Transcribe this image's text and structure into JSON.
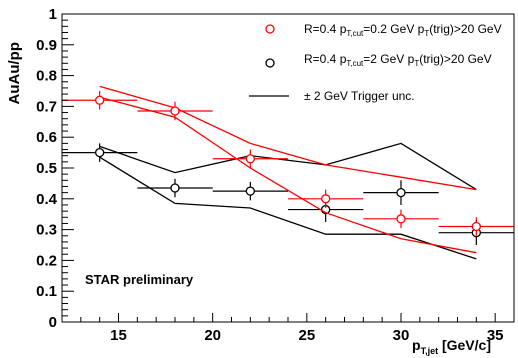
{
  "chart_data": {
    "type": "scatter",
    "xlabel": {
      "main": "p",
      "sub": "T,jet",
      "rest": " [GeV/c]"
    },
    "ylabel": "AuAu/pp",
    "xlim": [
      12,
      36
    ],
    "ylim": [
      0,
      1
    ],
    "x_ticks": [
      15,
      20,
      25,
      30,
      35
    ],
    "y_ticks": [
      0,
      0.1,
      0.2,
      0.3,
      0.4,
      0.5,
      0.6,
      0.7,
      0.8,
      0.9,
      1
    ],
    "grid": false,
    "legend_position": "top-right",
    "annotation": "STAR preliminary",
    "legend": {
      "series0": {
        "a": "R=0.4 p",
        "b": "T,cut",
        "c": "=0.2 GeV p",
        "d": "T",
        "e": "(trig)>20 GeV"
      },
      "series1": {
        "a": "R=0.4 p",
        "b": "T,cut",
        "c": "=2 GeV p",
        "d": "T",
        "e": "(trig)>20 GeV"
      },
      "band": "± 2 GeV Trigger unc."
    },
    "series": [
      {
        "color": "#ff0000",
        "marker": "open-circle",
        "points": [
          {
            "x": 14,
            "y": 0.72,
            "xerr": 2,
            "yerr": 0.03
          },
          {
            "x": 18,
            "y": 0.685,
            "xerr": 2,
            "yerr": 0.03
          },
          {
            "x": 22,
            "y": 0.53,
            "xerr": 2,
            "yerr": 0.03
          },
          {
            "x": 26,
            "y": 0.4,
            "xerr": 2,
            "yerr": 0.03
          },
          {
            "x": 30,
            "y": 0.335,
            "xerr": 2,
            "yerr": 0.03
          },
          {
            "x": 34,
            "y": 0.31,
            "xerr": 2,
            "yerr": 0.03
          }
        ],
        "band_upper": [
          [
            14,
            0.765
          ],
          [
            18,
            0.695
          ],
          [
            22,
            0.58
          ],
          [
            26,
            0.51
          ],
          [
            30,
            0.47
          ],
          [
            34,
            0.43
          ]
        ],
        "band_lower": [
          [
            14,
            0.73
          ],
          [
            18,
            0.665
          ],
          [
            22,
            0.5
          ],
          [
            26,
            0.355
          ],
          [
            30,
            0.27
          ],
          [
            34,
            0.225
          ]
        ]
      },
      {
        "color": "#000000",
        "marker": "open-circle",
        "points": [
          {
            "x": 14,
            "y": 0.55,
            "xerr": 2,
            "yerr": 0.03
          },
          {
            "x": 18,
            "y": 0.435,
            "xerr": 2,
            "yerr": 0.03
          },
          {
            "x": 22,
            "y": 0.425,
            "xerr": 2,
            "yerr": 0.03
          },
          {
            "x": 26,
            "y": 0.365,
            "xerr": 2,
            "yerr": 0.04
          },
          {
            "x": 30,
            "y": 0.42,
            "xerr": 2,
            "yerr": 0.04
          },
          {
            "x": 34,
            "y": 0.29,
            "xerr": 2,
            "yerr": 0.04
          }
        ],
        "band_upper": [
          [
            14,
            0.57
          ],
          [
            18,
            0.485
          ],
          [
            22,
            0.54
          ],
          [
            26,
            0.51
          ],
          [
            30,
            0.58
          ],
          [
            34,
            0.43
          ]
        ],
        "band_lower": [
          [
            14,
            0.535
          ],
          [
            18,
            0.385
          ],
          [
            22,
            0.37
          ],
          [
            26,
            0.285
          ],
          [
            30,
            0.285
          ],
          [
            34,
            0.205
          ]
        ]
      }
    ]
  }
}
